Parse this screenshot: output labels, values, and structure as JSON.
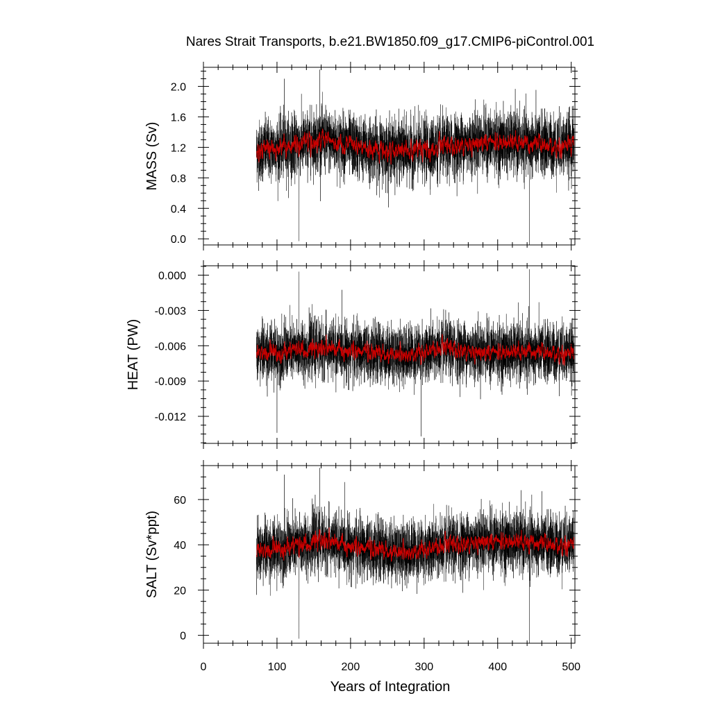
{
  "chart_data": {
    "type": "line",
    "title": "Nares Strait Transports, b.e21.BW1850.f09_g17.CMIP6-piControl.001",
    "xlabel": "Years of Integration",
    "xlim": [
      0,
      505
    ],
    "x_ticks": [
      0,
      100,
      200,
      300,
      400,
      500
    ],
    "x_tick_labels": [
      "0",
      "100",
      "200",
      "300",
      "400",
      "500"
    ],
    "data_x_range": [
      72,
      504
    ],
    "colors": {
      "raw": "#000000",
      "smoothed": "#cc0000",
      "axes": "#000000"
    },
    "panels": [
      {
        "ylabel": "MASS (Sv)",
        "ylim": [
          -0.08,
          2.25
        ],
        "y_ticks": [
          0.0,
          0.4,
          0.8,
          1.2,
          1.6,
          2.0
        ],
        "y_tick_labels": [
          "0.0",
          "0.4",
          "0.8",
          "1.2",
          "1.6",
          "2.0"
        ],
        "mean": 1.2,
        "spread": 0.2,
        "drift": [
          [
            72,
            1.15
          ],
          [
            120,
            1.22
          ],
          [
            160,
            1.3
          ],
          [
            220,
            1.18
          ],
          [
            280,
            1.15
          ],
          [
            330,
            1.2
          ],
          [
            380,
            1.28
          ],
          [
            430,
            1.25
          ],
          [
            480,
            1.22
          ],
          [
            504,
            1.25
          ]
        ],
        "annotated_extremes": [
          [
            130,
            -0.03
          ],
          [
            158,
            2.22
          ],
          [
            443,
            -0.1
          ],
          [
            110,
            2.1
          ]
        ],
        "series": [
          {
            "values_description_only": false,
            "min": -0.1,
            "max": 2.22
          }
        ]
      },
      {
        "ylabel": "HEAT (PW)",
        "ylim": [
          -0.0143,
          0.0008
        ],
        "y_ticks": [
          0.0,
          -0.003,
          -0.006,
          -0.009,
          -0.012
        ],
        "y_tick_labels": [
          "0.000",
          "-0.003",
          "-0.006",
          "-0.009",
          "-0.012"
        ],
        "mean": -0.0065,
        "spread": 0.0012,
        "drift": [
          [
            72,
            -0.0066
          ],
          [
            120,
            -0.0065
          ],
          [
            160,
            -0.0062
          ],
          [
            220,
            -0.0066
          ],
          [
            280,
            -0.0067
          ],
          [
            330,
            -0.0063
          ],
          [
            380,
            -0.0065
          ],
          [
            430,
            -0.0066
          ],
          [
            480,
            -0.0066
          ],
          [
            504,
            -0.0066
          ]
        ],
        "annotated_extremes": [
          [
            130,
            0.0003
          ],
          [
            100,
            -0.0134
          ],
          [
            296,
            -0.0137
          ],
          [
            443,
            0.0005
          ]
        ],
        "series": [
          {
            "values_description_only": false,
            "min": -0.0137,
            "max": 0.0005
          }
        ]
      },
      {
        "ylabel": "SALT (Sv*ppt)",
        "ylim": [
          -3.5,
          75
        ],
        "y_ticks": [
          0,
          20,
          40,
          60
        ],
        "y_tick_labels": [
          "0",
          "20",
          "40",
          "60"
        ],
        "mean": 39,
        "spread": 6.5,
        "drift": [
          [
            72,
            37
          ],
          [
            120,
            39
          ],
          [
            160,
            42
          ],
          [
            220,
            38
          ],
          [
            280,
            37
          ],
          [
            330,
            39
          ],
          [
            380,
            42
          ],
          [
            430,
            41
          ],
          [
            480,
            40
          ],
          [
            504,
            41
          ]
        ],
        "annotated_extremes": [
          [
            130,
            -1.5
          ],
          [
            158,
            74
          ],
          [
            443,
            -3.5
          ],
          [
            110,
            71
          ]
        ],
        "series": [
          {
            "values_description_only": false,
            "min": -3.5,
            "max": 74
          }
        ]
      }
    ]
  }
}
